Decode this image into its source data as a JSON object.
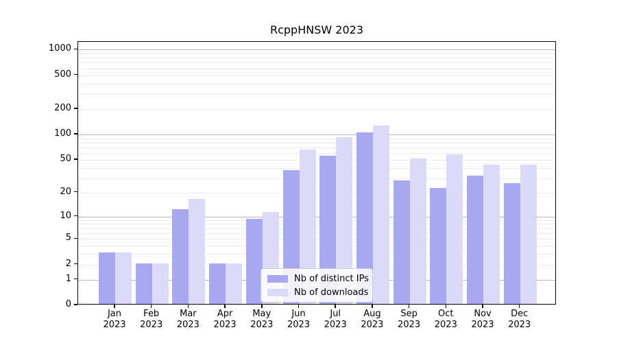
{
  "chart_data": {
    "type": "bar",
    "title": "RcppHNSW 2023",
    "categories": [
      "Jan 2023",
      "Feb 2023",
      "Mar 2023",
      "Apr 2023",
      "May 2023",
      "Jun 2023",
      "Jul 2023",
      "Aug 2023",
      "Sep 2023",
      "Oct 2023",
      "Nov 2023",
      "Dec 2023"
    ],
    "series": [
      {
        "name": "Nb of distinct IPs",
        "color": "#a7a7f2",
        "values": [
          3,
          2,
          12,
          2,
          9,
          36,
          54,
          102,
          27,
          22,
          31,
          25
        ]
      },
      {
        "name": "Nb of downloads",
        "color": "#dbdbf8",
        "values": [
          3,
          2,
          16,
          2,
          11,
          64,
          89,
          123,
          50,
          56,
          42,
          42
        ]
      }
    ],
    "yscale": "log1p",
    "yticks": [
      0,
      1,
      2,
      5,
      10,
      20,
      50,
      100,
      200,
      500,
      1000
    ],
    "major_gridlines": [
      1,
      10,
      100,
      1000
    ],
    "ylim": [
      0,
      1200
    ],
    "xlabel": "",
    "ylabel": "",
    "grid": true,
    "legend_position": "inside lower-center",
    "colors": {
      "bar_distinct_ips": "#a7a7f2",
      "bar_downloads": "#dbdbf8",
      "major_grid": "#b4b4b4",
      "minor_grid": "#ebebeb",
      "axis": "#000000"
    }
  }
}
